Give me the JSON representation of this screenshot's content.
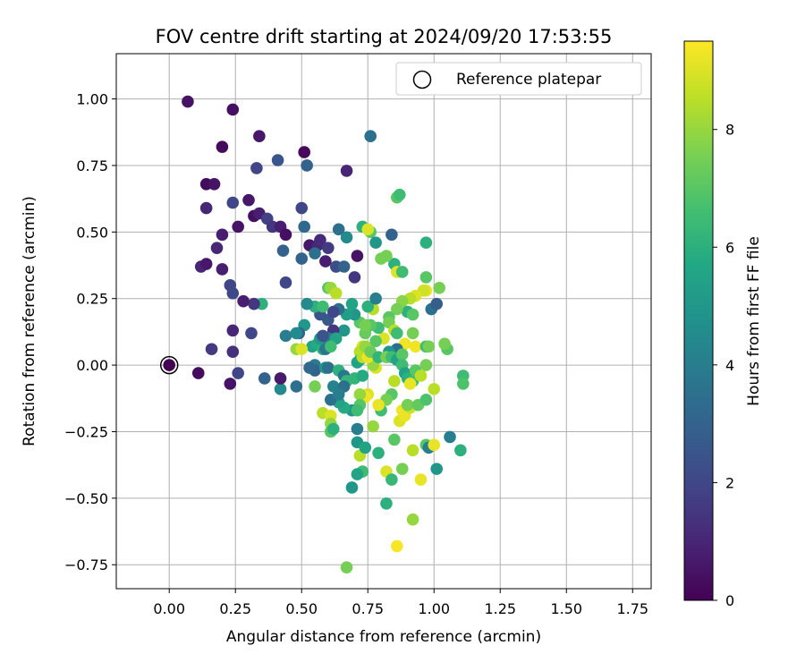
{
  "chart_data": {
    "type": "scatter",
    "title": "FOV centre drift starting at 2024/09/20 17:53:55",
    "xlabel": "Angular distance from reference (arcmin)",
    "ylabel": "Rotation from reference (arcmin)",
    "xlim": [
      -0.2,
      1.82
    ],
    "ylim": [
      -0.84,
      1.17
    ],
    "x_ticks": [
      "0.00",
      "0.25",
      "0.50",
      "0.75",
      "1.00",
      "1.25",
      "1.50",
      "1.75"
    ],
    "y_ticks": [
      "−0.75",
      "−0.50",
      "−0.25",
      "0.00",
      "0.25",
      "0.50",
      "0.75",
      "1.00"
    ],
    "grid": true,
    "legend": {
      "placement": "top-right",
      "entries": [
        "Reference platepar"
      ]
    },
    "reference_point": {
      "x": 0.0,
      "y": 0.0,
      "label": "Reference platepar"
    },
    "colorbar": {
      "label": "Hours from first FF file",
      "colormap": "viridis",
      "range": [
        0,
        9.5
      ],
      "ticks": [
        "0",
        "2",
        "4",
        "6",
        "8"
      ]
    },
    "points": [
      [
        0.07,
        0.99,
        0.5
      ],
      [
        0.24,
        0.96,
        0.4
      ],
      [
        0.34,
        0.86,
        0.6
      ],
      [
        0.2,
        0.82,
        0.3
      ],
      [
        0.51,
        0.8,
        0.2
      ],
      [
        0.33,
        0.74,
        2.0
      ],
      [
        0.41,
        0.77,
        2.5
      ],
      [
        0.52,
        0.75,
        3.0
      ],
      [
        0.67,
        0.73,
        1.0
      ],
      [
        0.76,
        0.86,
        3.5
      ],
      [
        0.14,
        0.68,
        0.3
      ],
      [
        0.17,
        0.68,
        0.5
      ],
      [
        0.14,
        0.59,
        1.0
      ],
      [
        0.24,
        0.61,
        2.0
      ],
      [
        0.3,
        0.62,
        0.6
      ],
      [
        0.26,
        0.52,
        0.5
      ],
      [
        0.32,
        0.56,
        0.4
      ],
      [
        0.34,
        0.57,
        0.8
      ],
      [
        0.37,
        0.55,
        1.8
      ],
      [
        0.39,
        0.52,
        1.5
      ],
      [
        0.42,
        0.52,
        0.8
      ],
      [
        0.44,
        0.49,
        0.4
      ],
      [
        0.5,
        0.59,
        2.0
      ],
      [
        0.51,
        0.52,
        3.2
      ],
      [
        0.2,
        0.49,
        0.8
      ],
      [
        0.18,
        0.44,
        1.0
      ],
      [
        0.53,
        0.45,
        0.6
      ],
      [
        0.56,
        0.45,
        1.0
      ],
      [
        0.57,
        0.47,
        1.2
      ],
      [
        0.6,
        0.44,
        1.6
      ],
      [
        0.12,
        0.37,
        1.0
      ],
      [
        0.14,
        0.38,
        0.6
      ],
      [
        0.2,
        0.36,
        0.8
      ],
      [
        0.23,
        0.3,
        2.0
      ],
      [
        0.24,
        0.27,
        2.1
      ],
      [
        0.43,
        0.43,
        3.0
      ],
      [
        0.44,
        0.31,
        2.0
      ],
      [
        0.55,
        0.42,
        3.5
      ],
      [
        0.5,
        0.4,
        3.0
      ],
      [
        0.59,
        0.39,
        0.8
      ],
      [
        0.63,
        0.37,
        2.2
      ],
      [
        0.66,
        0.37,
        3.0
      ],
      [
        0.7,
        0.33,
        1.5
      ],
      [
        0.64,
        0.51,
        3.5
      ],
      [
        0.67,
        0.48,
        4.5
      ],
      [
        0.71,
        0.41,
        0.5
      ],
      [
        0.73,
        0.52,
        6.0
      ],
      [
        0.76,
        0.5,
        7.0
      ],
      [
        0.75,
        0.51,
        9.0
      ],
      [
        0.78,
        0.46,
        5.0
      ],
      [
        0.8,
        0.4,
        7.5
      ],
      [
        0.84,
        0.49,
        3.0
      ],
      [
        0.85,
        0.38,
        6.0
      ],
      [
        0.86,
        0.63,
        7.0
      ],
      [
        0.87,
        0.64,
        6.5
      ],
      [
        0.82,
        0.41,
        7.5
      ],
      [
        0.86,
        0.35,
        9.0
      ],
      [
        0.88,
        0.35,
        6.5
      ],
      [
        0.97,
        0.46,
        6.0
      ],
      [
        0.97,
        0.33,
        7.0
      ],
      [
        0.99,
        0.21,
        3.5
      ],
      [
        1.01,
        0.23,
        2.8
      ],
      [
        0.97,
        0.28,
        9.2
      ],
      [
        0.96,
        0.28,
        8.8
      ],
      [
        1.02,
        0.29,
        7.5
      ],
      [
        0.93,
        0.26,
        9.0
      ],
      [
        0.91,
        0.25,
        8.5
      ],
      [
        0.88,
        0.24,
        7.8
      ],
      [
        0.9,
        0.2,
        6.0
      ],
      [
        0.92,
        0.19,
        7.0
      ],
      [
        0.86,
        0.21,
        7.5
      ],
      [
        0.83,
        0.18,
        7.0
      ],
      [
        0.83,
        0.16,
        7.5
      ],
      [
        0.85,
        0.13,
        8.5
      ],
      [
        0.86,
        0.12,
        6.5
      ],
      [
        0.92,
        0.12,
        7.5
      ],
      [
        0.89,
        0.08,
        9.3
      ],
      [
        0.93,
        0.07,
        9.3
      ],
      [
        0.97,
        0.07,
        6.5
      ],
      [
        0.86,
        0.06,
        3.5
      ],
      [
        0.83,
        0.05,
        5.0
      ],
      [
        0.81,
        0.1,
        9.0
      ],
      [
        0.79,
        0.14,
        6.5
      ],
      [
        0.78,
        0.09,
        7.0
      ],
      [
        0.76,
        0.15,
        7.0
      ],
      [
        0.74,
        0.12,
        7.3
      ],
      [
        0.73,
        0.07,
        9.0
      ],
      [
        0.72,
        0.05,
        8.5
      ],
      [
        0.72,
        0.02,
        6.0
      ],
      [
        0.71,
        0.01,
        5.5
      ],
      [
        0.72,
        0.16,
        7.0
      ],
      [
        0.74,
        0.15,
        7.5
      ],
      [
        0.77,
        0.21,
        8.5
      ],
      [
        0.75,
        0.22,
        6.0
      ],
      [
        0.78,
        0.25,
        4.0
      ],
      [
        0.7,
        0.19,
        5.0
      ],
      [
        0.67,
        0.19,
        5.3
      ],
      [
        0.69,
        0.23,
        5.5
      ],
      [
        0.66,
        0.13,
        5.0
      ],
      [
        0.64,
        0.21,
        3.5
      ],
      [
        0.6,
        0.17,
        2.6
      ],
      [
        0.62,
        0.13,
        1.5
      ],
      [
        0.62,
        0.2,
        2.0
      ],
      [
        0.57,
        0.19,
        2.5
      ],
      [
        0.55,
        0.22,
        6.0
      ],
      [
        0.58,
        0.22,
        6.5
      ],
      [
        0.6,
        0.29,
        7.0
      ],
      [
        0.61,
        0.29,
        8.0
      ],
      [
        0.63,
        0.27,
        8.5
      ],
      [
        0.52,
        0.23,
        4.5
      ],
      [
        0.51,
        0.15,
        5.0
      ],
      [
        0.49,
        0.12,
        3.0
      ],
      [
        0.54,
        0.07,
        5.5
      ],
      [
        0.56,
        0.08,
        5.8
      ],
      [
        0.58,
        0.06,
        6.0
      ],
      [
        0.57,
        0.1,
        5.0
      ],
      [
        0.59,
        0.06,
        3.8
      ],
      [
        0.6,
        0.1,
        4.0
      ],
      [
        0.63,
        0.1,
        5.5
      ],
      [
        0.61,
        0.07,
        6.5
      ],
      [
        0.48,
        0.06,
        8.0
      ],
      [
        0.44,
        0.11,
        4.0
      ],
      [
        0.48,
        0.12,
        4.5
      ],
      [
        0.5,
        0.06,
        9.0
      ],
      [
        0.55,
        0.0,
        4.0
      ],
      [
        0.55,
        -0.02,
        3.0
      ],
      [
        0.59,
        -0.01,
        5.0
      ],
      [
        0.6,
        -0.01,
        3.5
      ],
      [
        0.64,
        -0.02,
        6.0
      ],
      [
        0.66,
        -0.04,
        3.8
      ],
      [
        0.67,
        -0.06,
        6.3
      ],
      [
        0.62,
        -0.08,
        4.2
      ],
      [
        0.55,
        -0.08,
        7.5
      ],
      [
        0.66,
        -0.08,
        3.5
      ],
      [
        0.7,
        -0.05,
        6.2
      ],
      [
        0.73,
        -0.04,
        5.8
      ],
      [
        0.78,
        -0.01,
        9.0
      ],
      [
        0.77,
        0.0,
        8.0
      ],
      [
        0.73,
        0.03,
        8.5
      ],
      [
        0.75,
        0.03,
        9.2
      ],
      [
        0.74,
        0.07,
        8.0
      ],
      [
        0.76,
        0.05,
        7.3
      ],
      [
        0.79,
        0.03,
        6.2
      ],
      [
        0.82,
        0.03,
        7.5
      ],
      [
        0.84,
        0.03,
        6.5
      ],
      [
        0.86,
        0.02,
        5.5
      ],
      [
        0.88,
        0.04,
        7.0
      ],
      [
        0.88,
        0.0,
        6.5
      ],
      [
        0.89,
        -0.03,
        5.5
      ],
      [
        0.9,
        -0.05,
        6.0
      ],
      [
        0.92,
        -0.06,
        6.5
      ],
      [
        0.93,
        -0.02,
        7.0
      ],
      [
        0.97,
        0.0,
        7.5
      ],
      [
        0.95,
        -0.04,
        8.5
      ],
      [
        0.91,
        -0.07,
        9.2
      ],
      [
        0.85,
        -0.06,
        8.5
      ],
      [
        0.84,
        -0.11,
        7.0
      ],
      [
        0.82,
        -0.13,
        7.5
      ],
      [
        0.8,
        -0.17,
        6.5
      ],
      [
        0.79,
        -0.15,
        9.2
      ],
      [
        0.75,
        -0.11,
        9.0
      ],
      [
        0.74,
        -0.12,
        9.3
      ],
      [
        0.72,
        -0.11,
        8.0
      ],
      [
        0.72,
        -0.15,
        7.0
      ],
      [
        0.69,
        -0.17,
        5.0
      ],
      [
        0.71,
        -0.17,
        6.5
      ],
      [
        0.66,
        -0.16,
        5.8
      ],
      [
        0.64,
        -0.14,
        5.5
      ],
      [
        0.61,
        -0.13,
        3.5
      ],
      [
        0.64,
        -0.11,
        4.0
      ],
      [
        0.58,
        -0.18,
        8.5
      ],
      [
        0.61,
        -0.19,
        9.0
      ],
      [
        0.61,
        -0.22,
        8.0
      ],
      [
        0.61,
        -0.25,
        7.0
      ],
      [
        0.62,
        -0.24,
        6.0
      ],
      [
        0.71,
        -0.24,
        4.0
      ],
      [
        0.71,
        -0.29,
        5.0
      ],
      [
        0.72,
        -0.34,
        8.5
      ],
      [
        0.74,
        -0.31,
        5.5
      ],
      [
        0.77,
        -0.23,
        8.0
      ],
      [
        0.73,
        -0.4,
        6.5
      ],
      [
        0.71,
        -0.41,
        5.5
      ],
      [
        0.69,
        -0.46,
        5.0
      ],
      [
        0.79,
        -0.33,
        6.0
      ],
      [
        0.82,
        -0.4,
        9.0
      ],
      [
        0.84,
        -0.43,
        6.3
      ],
      [
        0.88,
        -0.39,
        7.5
      ],
      [
        0.85,
        -0.28,
        7.0
      ],
      [
        0.87,
        -0.21,
        9.0
      ],
      [
        0.88,
        -0.17,
        9.3
      ],
      [
        0.89,
        -0.19,
        9.2
      ],
      [
        0.91,
        -0.16,
        8.8
      ],
      [
        0.9,
        -0.15,
        7.5
      ],
      [
        0.94,
        -0.15,
        7.2
      ],
      [
        0.97,
        -0.13,
        6.8
      ],
      [
        1.0,
        -0.09,
        8.5
      ],
      [
        0.97,
        -0.3,
        7.0
      ],
      [
        0.98,
        -0.31,
        4.0
      ],
      [
        1.0,
        -0.3,
        9.2
      ],
      [
        1.01,
        -0.39,
        5.0
      ],
      [
        0.95,
        -0.43,
        9.2
      ],
      [
        0.92,
        -0.32,
        8.5
      ],
      [
        0.92,
        -0.58,
        8.0
      ],
      [
        0.86,
        -0.68,
        9.4
      ],
      [
        0.82,
        -0.52,
        6.0
      ],
      [
        0.67,
        -0.76,
        7.5
      ],
      [
        1.06,
        -0.27,
        4.0
      ],
      [
        1.1,
        -0.32,
        6.0
      ],
      [
        1.11,
        -0.04,
        6.5
      ],
      [
        1.11,
        -0.07,
        6.8
      ],
      [
        1.05,
        0.06,
        7.0
      ],
      [
        1.04,
        0.08,
        7.5
      ],
      [
        0.98,
        0.07,
        7.5
      ],
      [
        0.35,
        0.23,
        6.0
      ],
      [
        0.32,
        0.23,
        1.5
      ],
      [
        0.28,
        0.24,
        0.8
      ],
      [
        0.31,
        0.12,
        2.0
      ],
      [
        0.24,
        0.13,
        1.0
      ],
      [
        0.24,
        0.05,
        1.3
      ],
      [
        0.16,
        0.06,
        1.6
      ],
      [
        0.11,
        -0.03,
        0.3
      ],
      [
        0.26,
        -0.03,
        2.0
      ],
      [
        0.23,
        -0.07,
        0.5
      ],
      [
        0.36,
        -0.05,
        3.0
      ],
      [
        0.42,
        -0.09,
        4.5
      ],
      [
        0.42,
        -0.05,
        0.7
      ],
      [
        0.48,
        -0.08,
        3.5
      ],
      [
        0.0,
        0.0,
        0.0
      ],
      [
        0.53,
        -0.01,
        3.2
      ],
      [
        0.58,
        0.11,
        2.5
      ]
    ]
  }
}
